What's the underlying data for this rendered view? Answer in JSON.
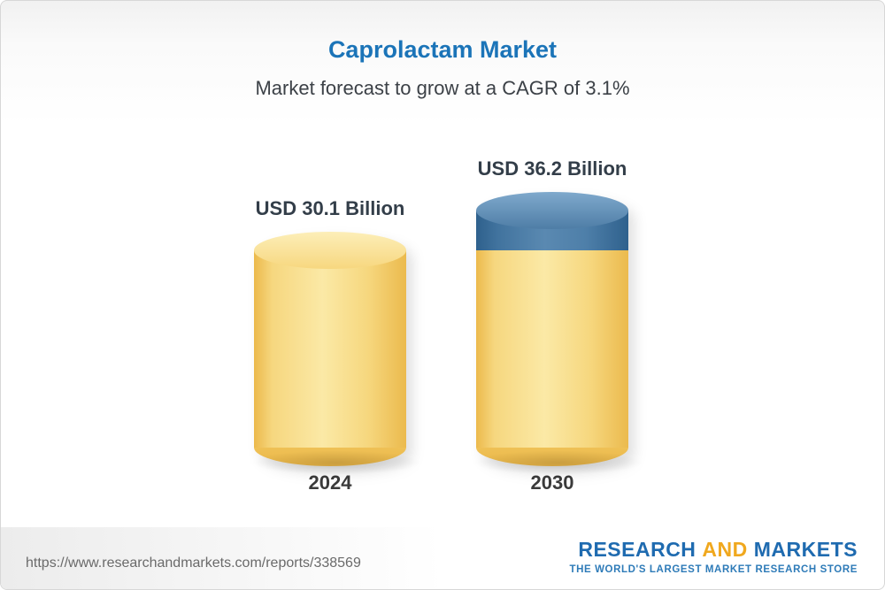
{
  "page": {
    "title": "Caprolactam Market",
    "subtitle": "Market forecast to grow at a CAGR of 3.1%"
  },
  "chart_data": {
    "type": "bar",
    "variant": "3d-cylinder",
    "title": "Caprolactam Market",
    "subtitle": "Market forecast to grow at a CAGR of 3.1%",
    "categories": [
      "2024",
      "2030"
    ],
    "values": [
      30.1,
      36.2
    ],
    "unit": "USD Billion",
    "ylim": [
      0,
      36.2
    ],
    "grid": false,
    "legend": null,
    "bars": [
      {
        "category": "2024",
        "label": "USD 30.1 Billion",
        "value": 30.1,
        "segments": [
          {
            "name": "base",
            "tone": "yellow",
            "value": 30.1,
            "color": "#F5CB60"
          }
        ]
      },
      {
        "category": "2030",
        "label": "USD 36.2 Billion",
        "value": 36.2,
        "segments": [
          {
            "name": "base",
            "tone": "yellow",
            "value": 30.1,
            "color": "#F5CB60"
          },
          {
            "name": "growth",
            "tone": "blue",
            "value": 6.1,
            "color": "#4C7EA9"
          }
        ]
      }
    ]
  },
  "footer": {
    "url": "https://www.researchandmarkets.com/reports/338569",
    "logo": {
      "word1": "RESEARCH",
      "word2": "AND",
      "word3": "MARKETS",
      "tagline": "THE WORLD'S LARGEST MARKET RESEARCH STORE",
      "brand_blue": "#1F6BB0",
      "brand_gold": "#F0A81E"
    }
  },
  "colors": {
    "title_blue": "#1B74B8",
    "subtitle_gray": "#3C4147",
    "bar_yellow": "#F5CB60",
    "bar_blue": "#4C7EA9",
    "label_dark": "#333E49"
  }
}
